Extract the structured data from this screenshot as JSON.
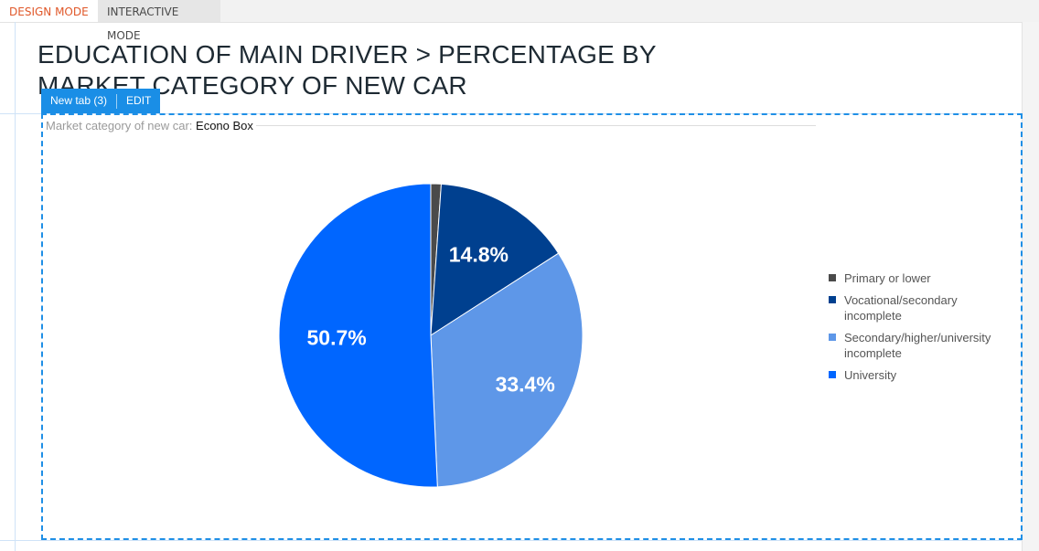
{
  "modes": {
    "design": "DESIGN MODE",
    "interactive": "INTERACTIVE MODE"
  },
  "page": {
    "title": "EDUCATION OF MAIN DRIVER > PERCENTAGE BY MARKET CATEGORY OF NEW CAR"
  },
  "widget": {
    "tab_label": "New tab (3)",
    "edit_label": "EDIT",
    "filter_label": "Market category of new car:",
    "filter_value": "Econo Box"
  },
  "colors": {
    "accent": "#1a8ee6",
    "design_mode": "#e0582a"
  },
  "chart_data": {
    "type": "pie",
    "title": "",
    "legend_position": "right",
    "categories": [
      "Primary or lower",
      "Vocational/secondary incomplete",
      "Secondary/higher/university incomplete",
      "University"
    ],
    "values": [
      1.1,
      14.8,
      33.4,
      50.7
    ],
    "colors": [
      "#4a4a4a",
      "#00408f",
      "#5e97e8",
      "#0066ff"
    ],
    "labels": [
      "",
      "14.8%",
      "33.4%",
      "50.7%"
    ]
  }
}
